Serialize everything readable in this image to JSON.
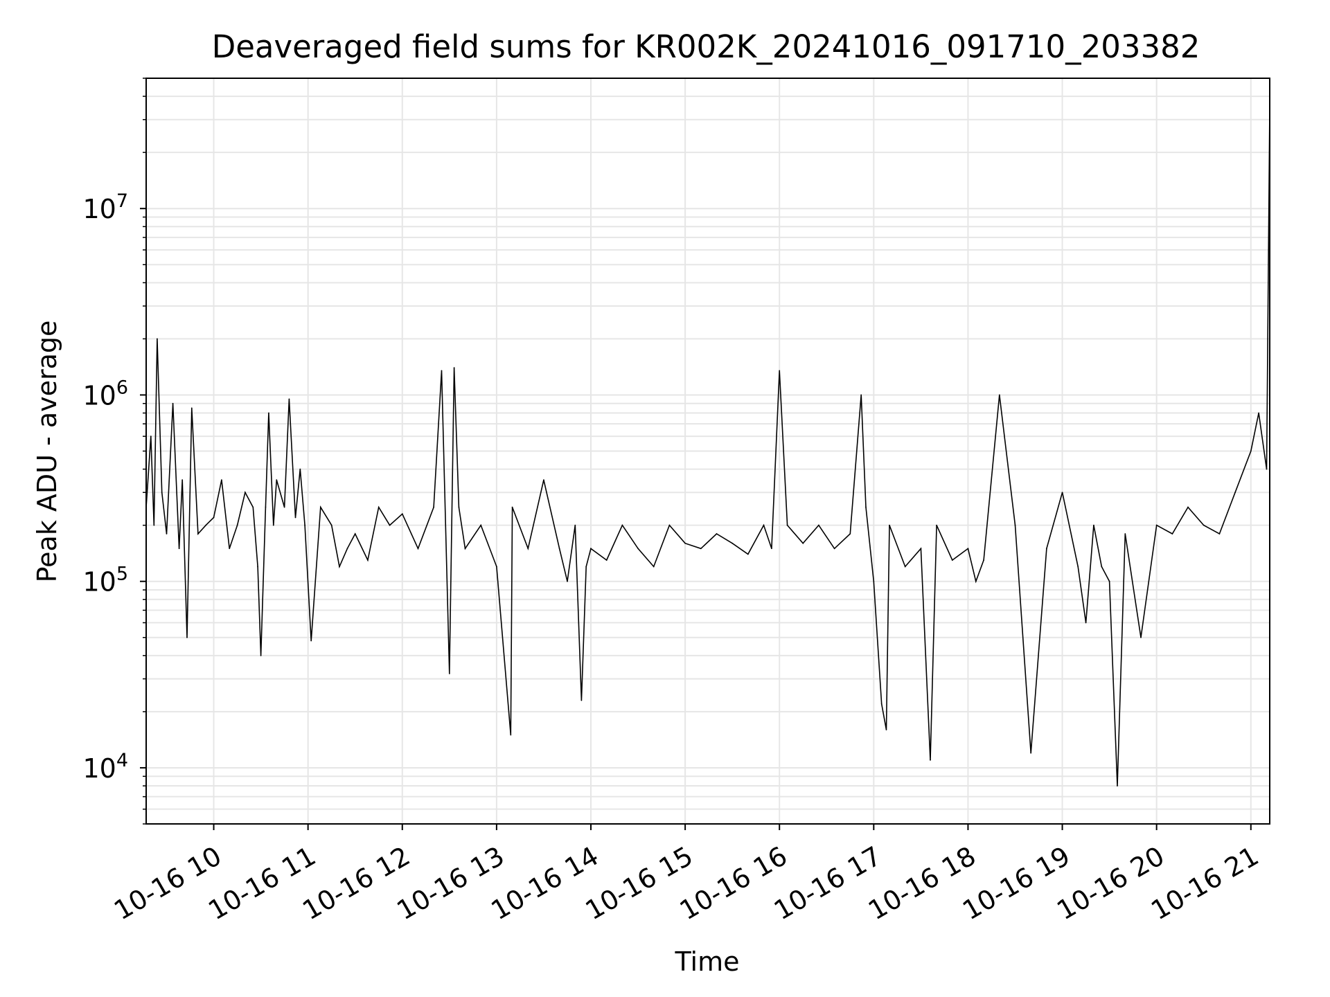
{
  "chart_data": {
    "type": "line",
    "title": "Deaveraged field sums for KR002K_20241016_091710_203382",
    "xlabel": "Time",
    "ylabel": "Peak ADU - average",
    "yscale": "log",
    "xlim": [
      "2024-10-16 09:17",
      "2024-10-16 21:12"
    ],
    "ylim": [
      5000,
      50000000
    ],
    "grid": true,
    "line_color": "#000000",
    "grid_color": "#e6e6e6",
    "x_ticks": [
      "10-16 10",
      "10-16 11",
      "10-16 12",
      "10-16 13",
      "10-16 14",
      "10-16 15",
      "10-16 16",
      "10-16 17",
      "10-16 18",
      "10-16 19",
      "10-16 20",
      "10-16 21"
    ],
    "y_ticks": [
      {
        "value": 10000,
        "base": "10",
        "exp": "4"
      },
      {
        "value": 100000,
        "base": "10",
        "exp": "5"
      },
      {
        "value": 1000000,
        "base": "10",
        "exp": "6"
      },
      {
        "value": 10000000,
        "base": "10",
        "exp": "7"
      }
    ],
    "series": [
      {
        "x": [
          "2024-10-16 09:17",
          "2024-10-16 09:20",
          "2024-10-16 09:22",
          "2024-10-16 09:24",
          "2024-10-16 09:27",
          "2024-10-16 09:30",
          "2024-10-16 09:34",
          "2024-10-16 09:38",
          "2024-10-16 09:40",
          "2024-10-16 09:43",
          "2024-10-16 09:46",
          "2024-10-16 09:50",
          "2024-10-16 09:55",
          "2024-10-16 10:00",
          "2024-10-16 10:05",
          "2024-10-16 10:10",
          "2024-10-16 10:15",
          "2024-10-16 10:20",
          "2024-10-16 10:25",
          "2024-10-16 10:28",
          "2024-10-16 10:30",
          "2024-10-16 10:33",
          "2024-10-16 10:35",
          "2024-10-16 10:38",
          "2024-10-16 10:40",
          "2024-10-16 10:45",
          "2024-10-16 10:48",
          "2024-10-16 10:52",
          "2024-10-16 10:55",
          "2024-10-16 10:58",
          "2024-10-16 11:02",
          "2024-10-16 11:08",
          "2024-10-16 11:15",
          "2024-10-16 11:20",
          "2024-10-16 11:25",
          "2024-10-16 11:30",
          "2024-10-16 11:38",
          "2024-10-16 11:45",
          "2024-10-16 11:52",
          "2024-10-16 12:00",
          "2024-10-16 12:10",
          "2024-10-16 12:20",
          "2024-10-16 12:25",
          "2024-10-16 12:30",
          "2024-10-16 12:33",
          "2024-10-16 12:36",
          "2024-10-16 12:40",
          "2024-10-16 12:50",
          "2024-10-16 13:00",
          "2024-10-16 13:09",
          "2024-10-16 13:10",
          "2024-10-16 13:20",
          "2024-10-16 13:30",
          "2024-10-16 13:40",
          "2024-10-16 13:45",
          "2024-10-16 13:50",
          "2024-10-16 13:54",
          "2024-10-16 13:57",
          "2024-10-16 14:00",
          "2024-10-16 14:10",
          "2024-10-16 14:20",
          "2024-10-16 14:30",
          "2024-10-16 14:40",
          "2024-10-16 14:50",
          "2024-10-16 15:00",
          "2024-10-16 15:10",
          "2024-10-16 15:20",
          "2024-10-16 15:30",
          "2024-10-16 15:40",
          "2024-10-16 15:50",
          "2024-10-16 15:55",
          "2024-10-16 16:00",
          "2024-10-16 16:05",
          "2024-10-16 16:15",
          "2024-10-16 16:25",
          "2024-10-16 16:35",
          "2024-10-16 16:45",
          "2024-10-16 16:52",
          "2024-10-16 16:55",
          "2024-10-16 17:00",
          "2024-10-16 17:05",
          "2024-10-16 17:08",
          "2024-10-16 17:10",
          "2024-10-16 17:20",
          "2024-10-16 17:30",
          "2024-10-16 17:36",
          "2024-10-16 17:40",
          "2024-10-16 17:50",
          "2024-10-16 18:00",
          "2024-10-16 18:05",
          "2024-10-16 18:10",
          "2024-10-16 18:20",
          "2024-10-16 18:30",
          "2024-10-16 18:40",
          "2024-10-16 18:50",
          "2024-10-16 19:00",
          "2024-10-16 19:10",
          "2024-10-16 19:15",
          "2024-10-16 19:20",
          "2024-10-16 19:25",
          "2024-10-16 19:30",
          "2024-10-16 19:35",
          "2024-10-16 19:40",
          "2024-10-16 19:50",
          "2024-10-16 20:00",
          "2024-10-16 20:10",
          "2024-10-16 20:20",
          "2024-10-16 20:30",
          "2024-10-16 20:40",
          "2024-10-16 20:50",
          "2024-10-16 21:00",
          "2024-10-16 21:05",
          "2024-10-16 21:10",
          "2024-10-16 21:12"
        ],
        "y": [
          250000,
          600000,
          200000,
          2000000,
          300000,
          180000,
          900000,
          150000,
          350000,
          50000,
          850000,
          180000,
          200000,
          220000,
          350000,
          150000,
          200000,
          300000,
          250000,
          120000,
          40000,
          250000,
          800000,
          200000,
          350000,
          250000,
          950000,
          220000,
          400000,
          200000,
          48000,
          250000,
          200000,
          120000,
          150000,
          180000,
          130000,
          250000,
          200000,
          230000,
          150000,
          250000,
          1350000,
          32000,
          1400000,
          250000,
          150000,
          200000,
          120000,
          15000,
          250000,
          150000,
          350000,
          150000,
          100000,
          200000,
          23000,
          120000,
          150000,
          130000,
          200000,
          150000,
          120000,
          200000,
          160000,
          150000,
          180000,
          160000,
          140000,
          200000,
          150000,
          1350000,
          200000,
          160000,
          200000,
          150000,
          180000,
          1000000,
          250000,
          100000,
          22000,
          16000,
          200000,
          120000,
          150000,
          11000,
          200000,
          130000,
          150000,
          100000,
          130000,
          1000000,
          200000,
          12000,
          150000,
          300000,
          120000,
          60000,
          200000,
          120000,
          100000,
          8000,
          180000,
          50000,
          200000,
          180000,
          250000,
          200000,
          180000,
          300000,
          500000,
          800000,
          400000,
          35000000
        ]
      }
    ]
  }
}
